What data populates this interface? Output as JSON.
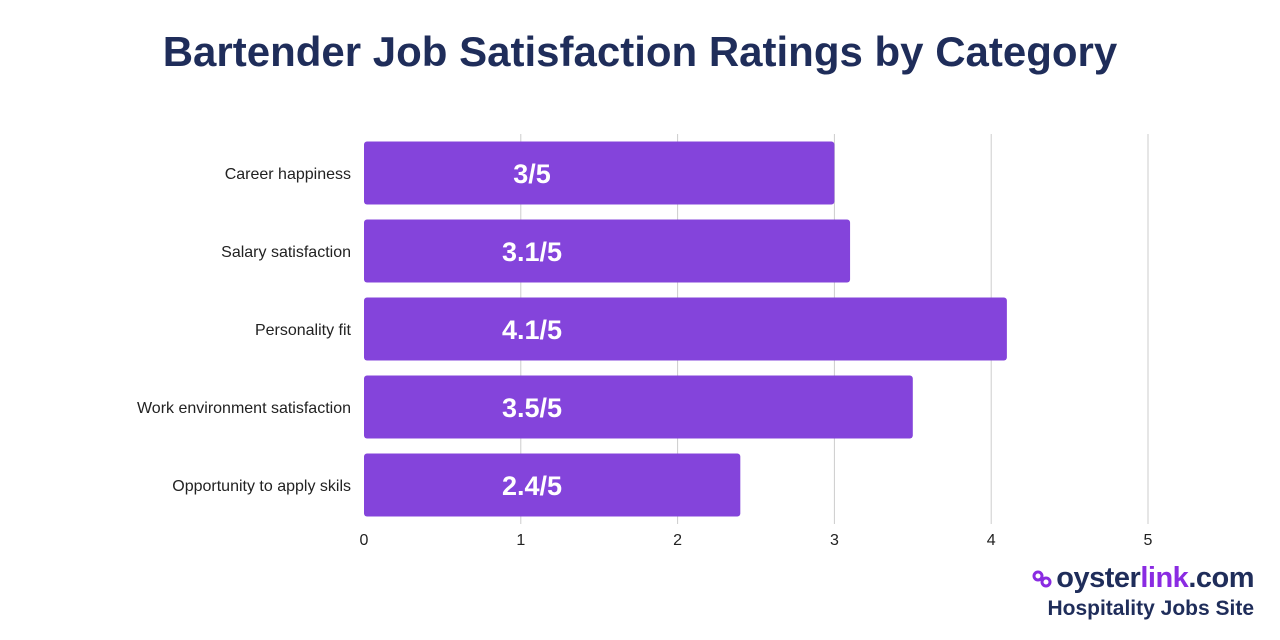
{
  "colors": {
    "bar": "#8444db",
    "title": "#1f2d5a",
    "grid": "#cccccc",
    "accent": "#8a2be2"
  },
  "chart_data": {
    "type": "bar",
    "orientation": "horizontal",
    "title": "Bartender Job Satisfaction Ratings by Category",
    "categories": [
      "Career happiness",
      "Salary satisfaction",
      "Personality fit",
      "Work environment satisfaction",
      "Opportunity to apply skils"
    ],
    "values": [
      3,
      3.1,
      4.1,
      3.5,
      2.4
    ],
    "data_labels": [
      "3/5",
      "3.1/5",
      "4.1/5",
      "3.5/5",
      "2.4/5"
    ],
    "xlim": [
      0,
      5
    ],
    "xticks": [
      "0",
      "1",
      "2",
      "3",
      "4",
      "5"
    ],
    "grid": "vertical",
    "xlabel": "",
    "ylabel": ""
  },
  "logo": {
    "brand_main": "oyster",
    "brand_accent": "link",
    "brand_suffix": ".com",
    "tagline": "Hospitality Jobs Site"
  }
}
